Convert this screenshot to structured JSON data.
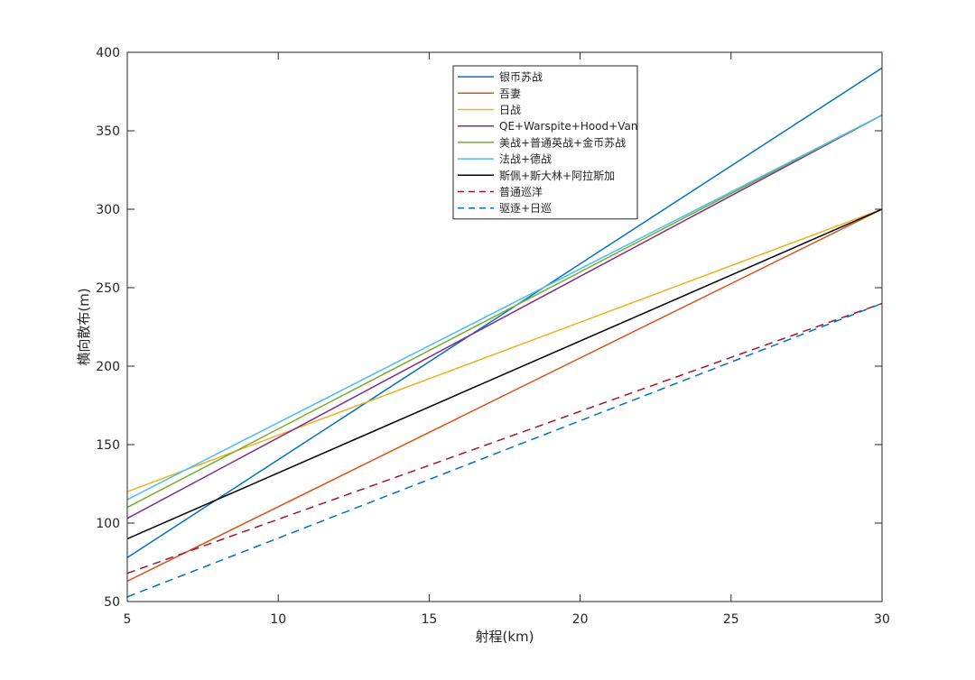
{
  "chart_data": {
    "type": "line",
    "xlabel": "射程(km)",
    "ylabel": "横向散布(m)",
    "xlim": [
      5,
      30
    ],
    "ylim": [
      50,
      400
    ],
    "xticks": [
      5,
      10,
      15,
      20,
      25,
      30
    ],
    "yticks": [
      50,
      100,
      150,
      200,
      250,
      300,
      350,
      400
    ],
    "grid": false,
    "legend_position": "top-center",
    "series": [
      {
        "name": "银币苏战",
        "x": [
          5,
          30
        ],
        "y": [
          78,
          390
        ],
        "color": "#0072BD",
        "dash": "solid"
      },
      {
        "name": "吾妻",
        "x": [
          5,
          30
        ],
        "y": [
          63,
          300
        ],
        "color": "#D95319",
        "dash": "solid"
      },
      {
        "name": "日战",
        "x": [
          5,
          30
        ],
        "y": [
          120,
          300
        ],
        "color": "#EDB120",
        "dash": "solid"
      },
      {
        "name": "QE+Warspite+Hood+Van",
        "x": [
          5,
          30
        ],
        "y": [
          103,
          360
        ],
        "color": "#7E2F8E",
        "dash": "solid"
      },
      {
        "name": "美战+普通英战+金币苏战",
        "x": [
          5,
          30
        ],
        "y": [
          110,
          360
        ],
        "color": "#77AC30",
        "dash": "solid"
      },
      {
        "name": "法战+德战",
        "x": [
          5,
          30
        ],
        "y": [
          115,
          360
        ],
        "color": "#4DBEEE",
        "dash": "solid"
      },
      {
        "name": "斯佩+斯大林+阿拉斯加",
        "x": [
          5,
          30
        ],
        "y": [
          90,
          300
        ],
        "color": "#000000",
        "dash": "solid"
      },
      {
        "name": "普通巡洋",
        "x": [
          5,
          30
        ],
        "y": [
          68,
          240
        ],
        "color": "#A2142F",
        "dash": "dashed"
      },
      {
        "name": "驱逐+日巡",
        "x": [
          5,
          30
        ],
        "y": [
          53,
          240
        ],
        "color": "#0072BD",
        "dash": "dashed"
      }
    ]
  }
}
